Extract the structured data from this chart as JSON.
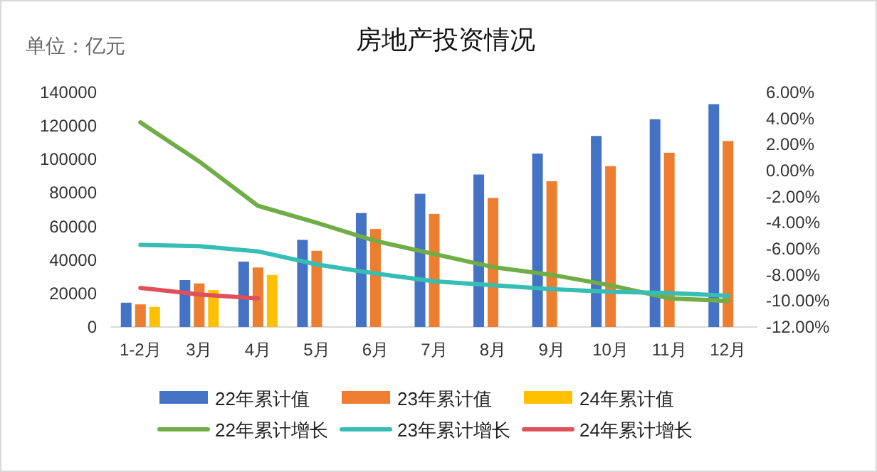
{
  "chart_data": {
    "type": "bar",
    "title": "房地产投资情况",
    "annotations": [
      "单位：亿元"
    ],
    "categories": [
      "1-2月",
      "3月",
      "4月",
      "5月",
      "6月",
      "7月",
      "8月",
      "9月",
      "10月",
      "11月",
      "12月"
    ],
    "series": [
      {
        "name": "22年累计值",
        "color": "#4472c4",
        "values": [
          14500,
          28000,
          39000,
          52000,
          68000,
          79500,
          91000,
          103500,
          114000,
          124000,
          133000
        ]
      },
      {
        "name": "23年累计值",
        "color": "#ed7d31",
        "values": [
          13500,
          26000,
          35500,
          45500,
          58500,
          67500,
          77000,
          87000,
          96000,
          104000,
          111000
        ]
      },
      {
        "name": "24年累计值",
        "color": "#ffc000",
        "values": [
          12000,
          22000,
          31000,
          null,
          null,
          null,
          null,
          null,
          null,
          null,
          null
        ]
      },
      {
        "name": "22年累计增长",
        "type": "line",
        "axis": "y2",
        "color": "#70ad47",
        "values": [
          3.7,
          0.7,
          -2.7,
          -4.0,
          -5.4,
          -6.4,
          -7.4,
          -8.0,
          -8.8,
          -9.8,
          -10.0
        ]
      },
      {
        "name": "23年累计增长",
        "type": "line",
        "axis": "y2",
        "color": "#36bdb4",
        "values": [
          -5.7,
          -5.8,
          -6.2,
          -7.2,
          -7.9,
          -8.5,
          -8.8,
          -9.1,
          -9.3,
          -9.4,
          -9.6
        ]
      },
      {
        "name": "24年累计增长",
        "type": "line",
        "axis": "y2",
        "color": "#e0505a",
        "values": [
          -9.0,
          -9.5,
          -9.8,
          null,
          null,
          null,
          null,
          null,
          null,
          null,
          null
        ]
      }
    ],
    "ylim": [
      0,
      140000
    ],
    "yticks": [
      0,
      20000,
      40000,
      60000,
      80000,
      100000,
      120000,
      140000
    ],
    "y2lim": [
      -12,
      6
    ],
    "y2ticks": [
      {
        "value": 6,
        "label": "6.00%"
      },
      {
        "value": 4,
        "label": "4.00%"
      },
      {
        "value": 2,
        "label": "2.00%"
      },
      {
        "value": 0,
        "label": "0.00%"
      },
      {
        "value": -2,
        "label": "-2.00%"
      },
      {
        "value": -4,
        "label": "-4.00%"
      },
      {
        "value": -6,
        "label": "-6.00%"
      },
      {
        "value": -8,
        "label": "-8.00%"
      },
      {
        "value": -10,
        "label": "-10.00%"
      },
      {
        "value": -12,
        "label": "-12.00%"
      }
    ],
    "grid": false,
    "legend": "bottom"
  }
}
